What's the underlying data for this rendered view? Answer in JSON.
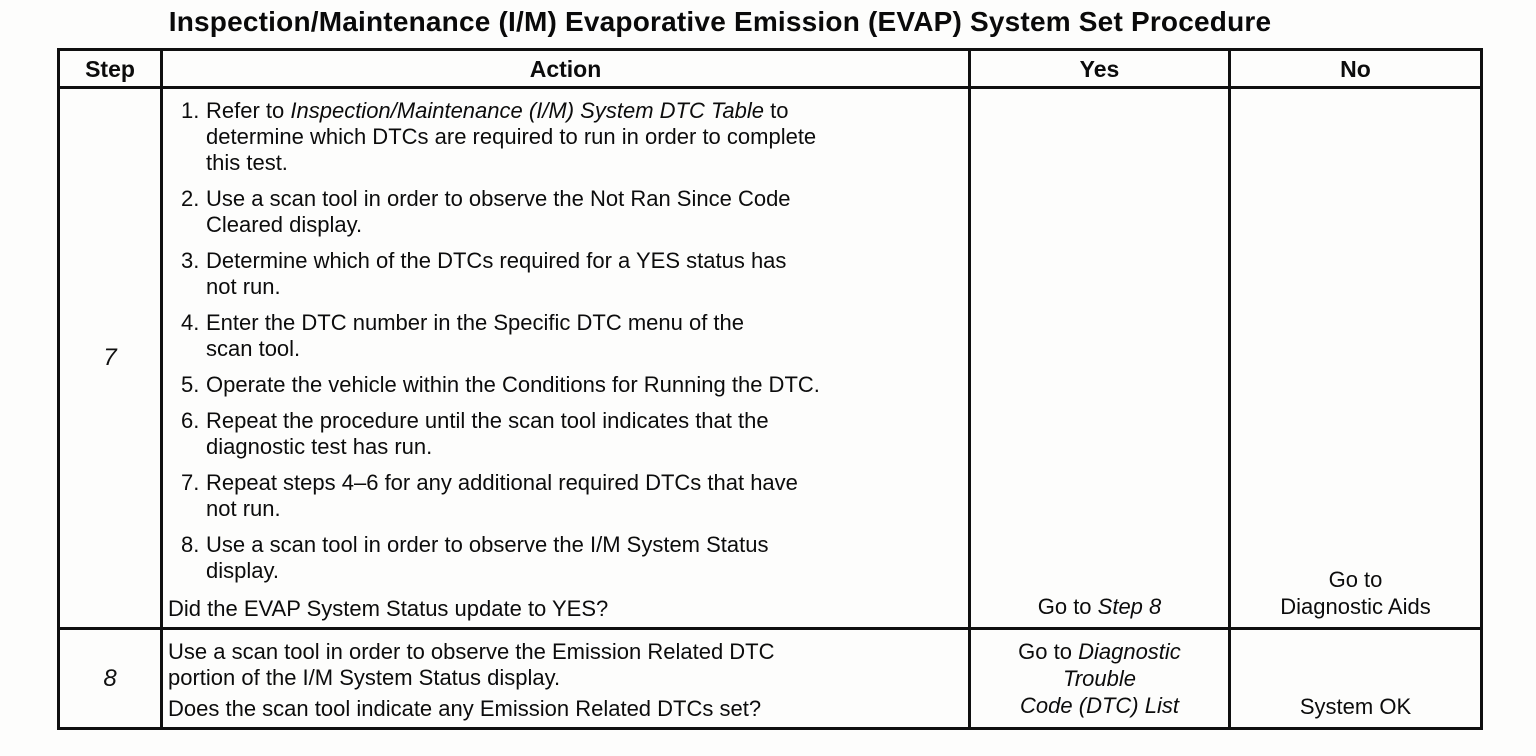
{
  "title": "Inspection/Maintenance (I/M) Evaporative Emission (EVAP) System Set Procedure",
  "table": {
    "headers": {
      "step": "Step",
      "action": "Action",
      "yes": "Yes",
      "no": "No"
    },
    "rows": [
      {
        "step": "7",
        "action": {
          "items": [
            {
              "num": "1.",
              "line1_pre": "Refer to ",
              "line1_italic": "Inspection/Maintenance (I/M) System DTC Table",
              "line1_post": " to",
              "line2": "determine which DTCs are required to run in order to complete",
              "line3": "this test."
            },
            {
              "num": "2.",
              "line1": "Use a scan tool in order to observe the Not Ran Since Code",
              "line2": "Cleared display."
            },
            {
              "num": "3.",
              "line1": "Determine which of the DTCs required for a YES status has",
              "line2": "not run."
            },
            {
              "num": "4.",
              "line1": "Enter the DTC number in the Specific DTC menu of the",
              "line2": "scan tool."
            },
            {
              "num": "5.",
              "line1": "Operate the vehicle within the Conditions for Running the DTC."
            },
            {
              "num": "6.",
              "line1": "Repeat the procedure until the scan tool indicates that the",
              "line2": "diagnostic test has run."
            },
            {
              "num": "7.",
              "line1": "Repeat steps 4–6 for any additional required DTCs that have",
              "line2": "not run."
            },
            {
              "num": "8.",
              "line1": "Use a scan tool in order to observe the I/M System Status",
              "line2": "display."
            }
          ],
          "question": "Did the EVAP System Status update to YES?"
        },
        "yes": {
          "pre": "Go to ",
          "italic": "Step 8"
        },
        "no": {
          "line1": "Go to",
          "line2": "Diagnostic Aids"
        }
      },
      {
        "step": "8",
        "action": {
          "line1": "Use a scan tool in order to observe the Emission Related DTC",
          "line2": "portion of the I/M System Status display.",
          "question": "Does the scan tool indicate any Emission Related DTCs set?"
        },
        "yes": {
          "line1_pre": "Go to ",
          "line1_italic": "Diagnostic",
          "line2_italic": "Trouble",
          "line3_italic": "Code (DTC) List"
        },
        "no": {
          "text": "System OK"
        }
      }
    ]
  }
}
